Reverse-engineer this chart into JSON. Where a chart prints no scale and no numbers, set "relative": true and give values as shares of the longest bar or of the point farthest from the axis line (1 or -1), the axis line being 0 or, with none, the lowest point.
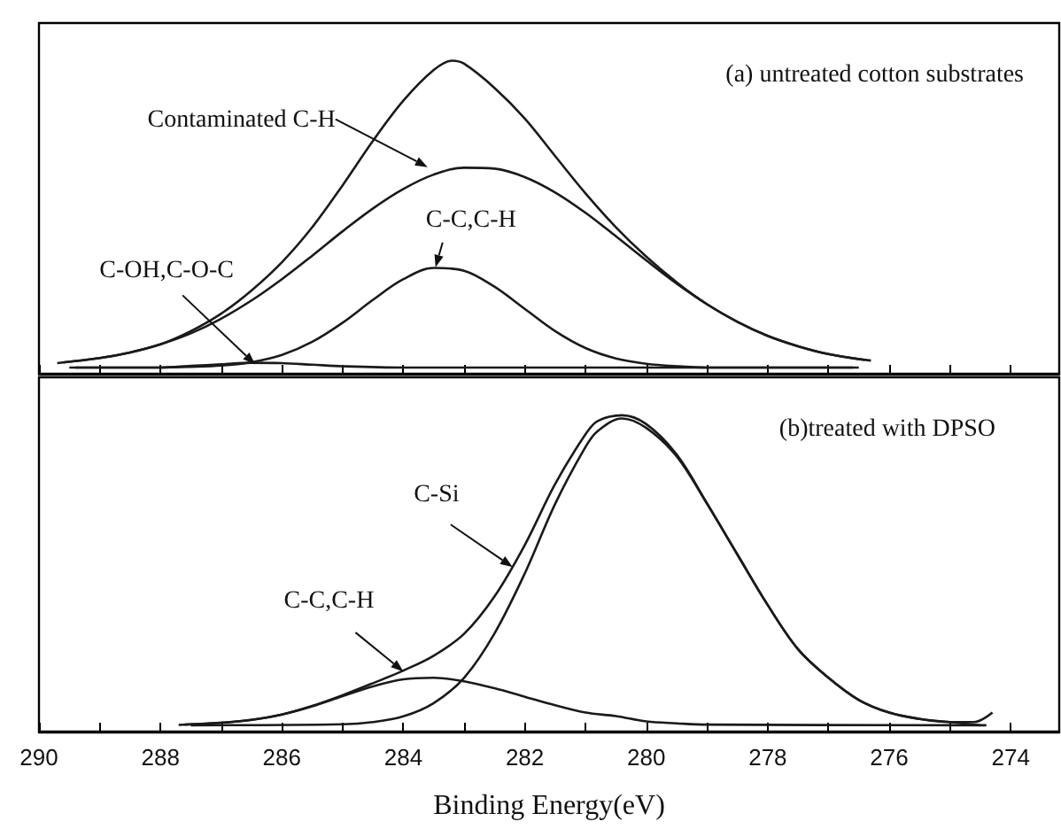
{
  "chart_data": [
    {
      "type": "line",
      "relative": true,
      "marker": "none",
      "tick_labels": false,
      "xlim": [
        290,
        273.2
      ],
      "xticks": [
        290,
        {
          "value": 289,
          "label": null
        },
        288,
        {
          "value": 287,
          "label": null
        },
        286,
        {
          "value": 285,
          "label": null
        },
        284,
        {
          "value": 283,
          "label": null
        },
        282,
        {
          "value": 281,
          "label": null
        },
        280,
        {
          "value": 279,
          "label": null
        },
        278,
        {
          "value": 277,
          "label": null
        },
        276,
        {
          "value": 275,
          "label": null
        },
        274
      ],
      "annotations": [
        "(a) untreated cotton substrates",
        {
          "text": "Contaminated C-H",
          "x": 283.6,
          "y": 0.66
        },
        {
          "text": "C-C,C-H",
          "x": 283.47,
          "y": 0.34
        },
        {
          "text": "C-OH,C-O-C",
          "x": 286.44,
          "y": 0.03
        }
      ],
      "series": [
        {
          "color": "#1a1a1a",
          "x": [
            289.7,
            289,
            288.5,
            288,
            287.5,
            287,
            286.5,
            286,
            285.5,
            285,
            284.5,
            284,
            283.5,
            283.2,
            283,
            282.5,
            282,
            281.5,
            281,
            280.5,
            280,
            279.5,
            279,
            278.5,
            278,
            277.5,
            277,
            276.3
          ],
          "values": [
            0.034,
            0.05,
            0.068,
            0.094,
            0.136,
            0.192,
            0.266,
            0.356,
            0.468,
            0.602,
            0.744,
            0.872,
            0.97,
            1.0,
            0.99,
            0.913,
            0.815,
            0.695,
            0.576,
            0.468,
            0.374,
            0.292,
            0.222,
            0.166,
            0.121,
            0.088,
            0.063,
            0.042
          ]
        },
        {
          "color": "#1a1a1a",
          "x": [
            289.6,
            289,
            288.5,
            288,
            287.5,
            287,
            286.5,
            286,
            285.5,
            285,
            284.5,
            284,
            283.5,
            283,
            282.5,
            282,
            281.5,
            281,
            280.5,
            280,
            279.5,
            279,
            278.5,
            278,
            277.5,
            277,
            276.4
          ],
          "values": [
            0.036,
            0.05,
            0.068,
            0.094,
            0.129,
            0.176,
            0.234,
            0.302,
            0.377,
            0.455,
            0.528,
            0.59,
            0.636,
            0.658,
            0.655,
            0.628,
            0.579,
            0.514,
            0.439,
            0.362,
            0.288,
            0.222,
            0.166,
            0.121,
            0.088,
            0.063,
            0.044
          ]
        },
        {
          "color": "#1a1a1a",
          "x": [
            289.5,
            288,
            287.5,
            287,
            286.5,
            286,
            285.5,
            285,
            284.5,
            284,
            283.5,
            283,
            282.5,
            282,
            281.5,
            281,
            280.5,
            280,
            279.5,
            279,
            276.5
          ],
          "values": [
            0.02,
            0.02,
            0.022,
            0.026,
            0.037,
            0.06,
            0.102,
            0.163,
            0.236,
            0.302,
            0.338,
            0.329,
            0.278,
            0.207,
            0.136,
            0.082,
            0.049,
            0.032,
            0.024,
            0.02,
            0.02
          ]
        },
        {
          "color": "#1a1a1a",
          "x": [
            289.4,
            288,
            287.5,
            287,
            286.5,
            286,
            285.5,
            285,
            284,
            276.6
          ],
          "values": [
            0.02,
            0.02,
            0.025,
            0.03,
            0.035,
            0.034,
            0.029,
            0.024,
            0.02,
            0.02
          ]
        }
      ]
    },
    {
      "type": "line",
      "relative": true,
      "marker": "none",
      "tick_labels": "x",
      "xlabel": "Binding Energy(eV)",
      "xlim": [
        290,
        273.2
      ],
      "xticks": [
        290,
        {
          "value": 289,
          "label": null
        },
        288,
        {
          "value": 287,
          "label": null
        },
        286,
        {
          "value": 285,
          "label": null
        },
        284,
        {
          "value": 283,
          "label": null
        },
        282,
        {
          "value": 281,
          "label": null
        },
        280,
        {
          "value": 279,
          "label": null
        },
        278,
        {
          "value": 277,
          "label": null
        },
        276,
        {
          "value": 275,
          "label": null
        },
        274
      ],
      "annotations": [
        "(b)treated with DPSO",
        {
          "text": "C-Si",
          "x": 282.2,
          "y": 0.52
        },
        {
          "text": "C-C,C-H",
          "x": 284.0,
          "y": 0.19
        }
      ],
      "series": [
        {
          "color": "#1a1a1a",
          "x": [
            287.7,
            287,
            286.5,
            286,
            285.5,
            285,
            284.5,
            284,
            283.5,
            283,
            282.5,
            282,
            281.5,
            281,
            280.8,
            280.4,
            280,
            279.5,
            279,
            278.5,
            278,
            277.5,
            277,
            276.5,
            276,
            275.5,
            275,
            274.6,
            274.3
          ],
          "values": [
            0.021,
            0.028,
            0.037,
            0.054,
            0.081,
            0.115,
            0.153,
            0.193,
            0.24,
            0.309,
            0.427,
            0.59,
            0.783,
            0.94,
            0.982,
            1.0,
            0.972,
            0.876,
            0.722,
            0.56,
            0.4,
            0.26,
            0.17,
            0.1,
            0.06,
            0.04,
            0.03,
            0.03,
            0.06
          ]
        },
        {
          "color": "#1a1a1a",
          "x": [
            287.5,
            285,
            284.5,
            284,
            283.5,
            283,
            282.5,
            282,
            281.5,
            281,
            280.8,
            280.4,
            280,
            279.5,
            279,
            278.5,
            278,
            277.5,
            277,
            276.5,
            276,
            275.5,
            275,
            274.5
          ],
          "values": [
            0.02,
            0.023,
            0.03,
            0.048,
            0.09,
            0.17,
            0.31,
            0.5,
            0.72,
            0.9,
            0.95,
            0.99,
            0.96,
            0.87,
            0.72,
            0.56,
            0.4,
            0.26,
            0.17,
            0.1,
            0.06,
            0.04,
            0.03,
            0.02
          ]
        },
        {
          "color": "#1a1a1a",
          "x": [
            287.6,
            287,
            286.5,
            286,
            285.5,
            285,
            284.5,
            284,
            283.5,
            283,
            282.5,
            282,
            281.5,
            281,
            280.5,
            280,
            279.5,
            279,
            274.4
          ],
          "values": [
            0.022,
            0.028,
            0.037,
            0.054,
            0.08,
            0.112,
            0.143,
            0.165,
            0.17,
            0.159,
            0.137,
            0.11,
            0.083,
            0.06,
            0.049,
            0.032,
            0.026,
            0.022,
            0.02
          ]
        }
      ]
    }
  ]
}
